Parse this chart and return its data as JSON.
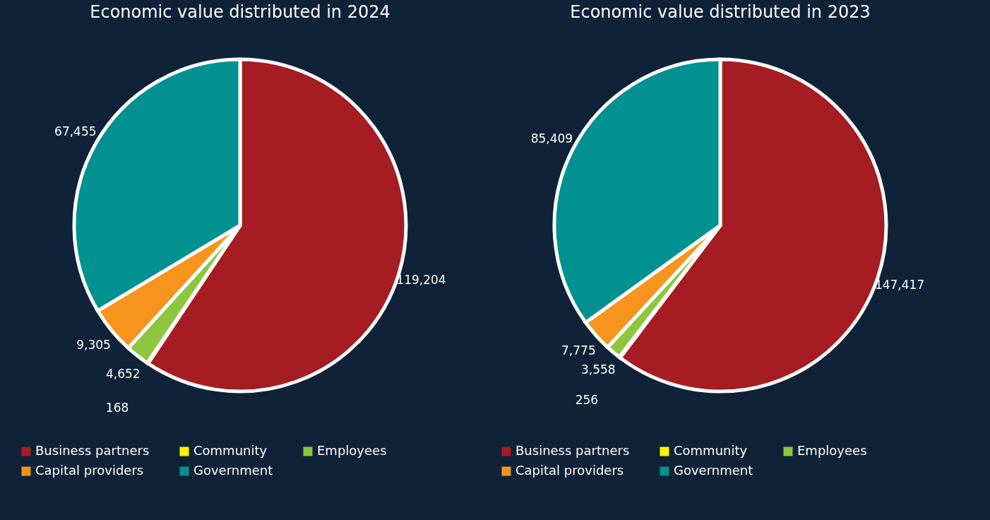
{
  "chart_data": [
    {
      "type": "pie",
      "title": "Economic value distributed in 2024",
      "categories": [
        "Business partners",
        "Community",
        "Employees",
        "Capital providers",
        "Government"
      ],
      "values": [
        119204,
        168,
        4652,
        9305,
        67455
      ],
      "value_labels": [
        "119,204",
        "168",
        "4,652",
        "9,305",
        "67,455"
      ],
      "colors": [
        "#a51c22",
        "#fff200",
        "#8dc63f",
        "#f7941d",
        "#009190"
      ],
      "legend": "bottom"
    },
    {
      "type": "pie",
      "title": "Economic value distributed in 2023",
      "categories": [
        "Business partners",
        "Community",
        "Employees",
        "Capital providers",
        "Government"
      ],
      "values": [
        147417,
        256,
        3558,
        7775,
        85409
      ],
      "value_labels": [
        "147,417",
        "256",
        "3,558",
        "7,775",
        "85,409"
      ],
      "colors": [
        "#a51c22",
        "#fff200",
        "#8dc63f",
        "#f7941d",
        "#009190"
      ],
      "legend": "bottom"
    }
  ]
}
